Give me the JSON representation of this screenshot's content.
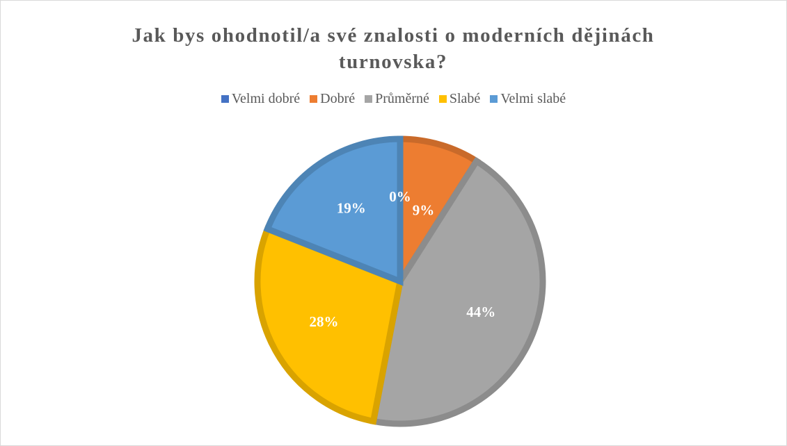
{
  "chart_data": {
    "type": "pie",
    "title": "Jak bys ohodnotil/a své znalosti o moderních dějinách turnovska?",
    "categories": [
      "Velmi dobré",
      "Dobré",
      "Průměrné",
      "Slabé",
      "Velmi slabé"
    ],
    "values": [
      0,
      9,
      44,
      28,
      19
    ],
    "value_labels": [
      "0%",
      "9%",
      "44%",
      "28%",
      "19%"
    ],
    "colors": [
      "#4472c4",
      "#ed7d31",
      "#a5a5a5",
      "#ffc000",
      "#5b9bd5"
    ],
    "legend": "top"
  }
}
